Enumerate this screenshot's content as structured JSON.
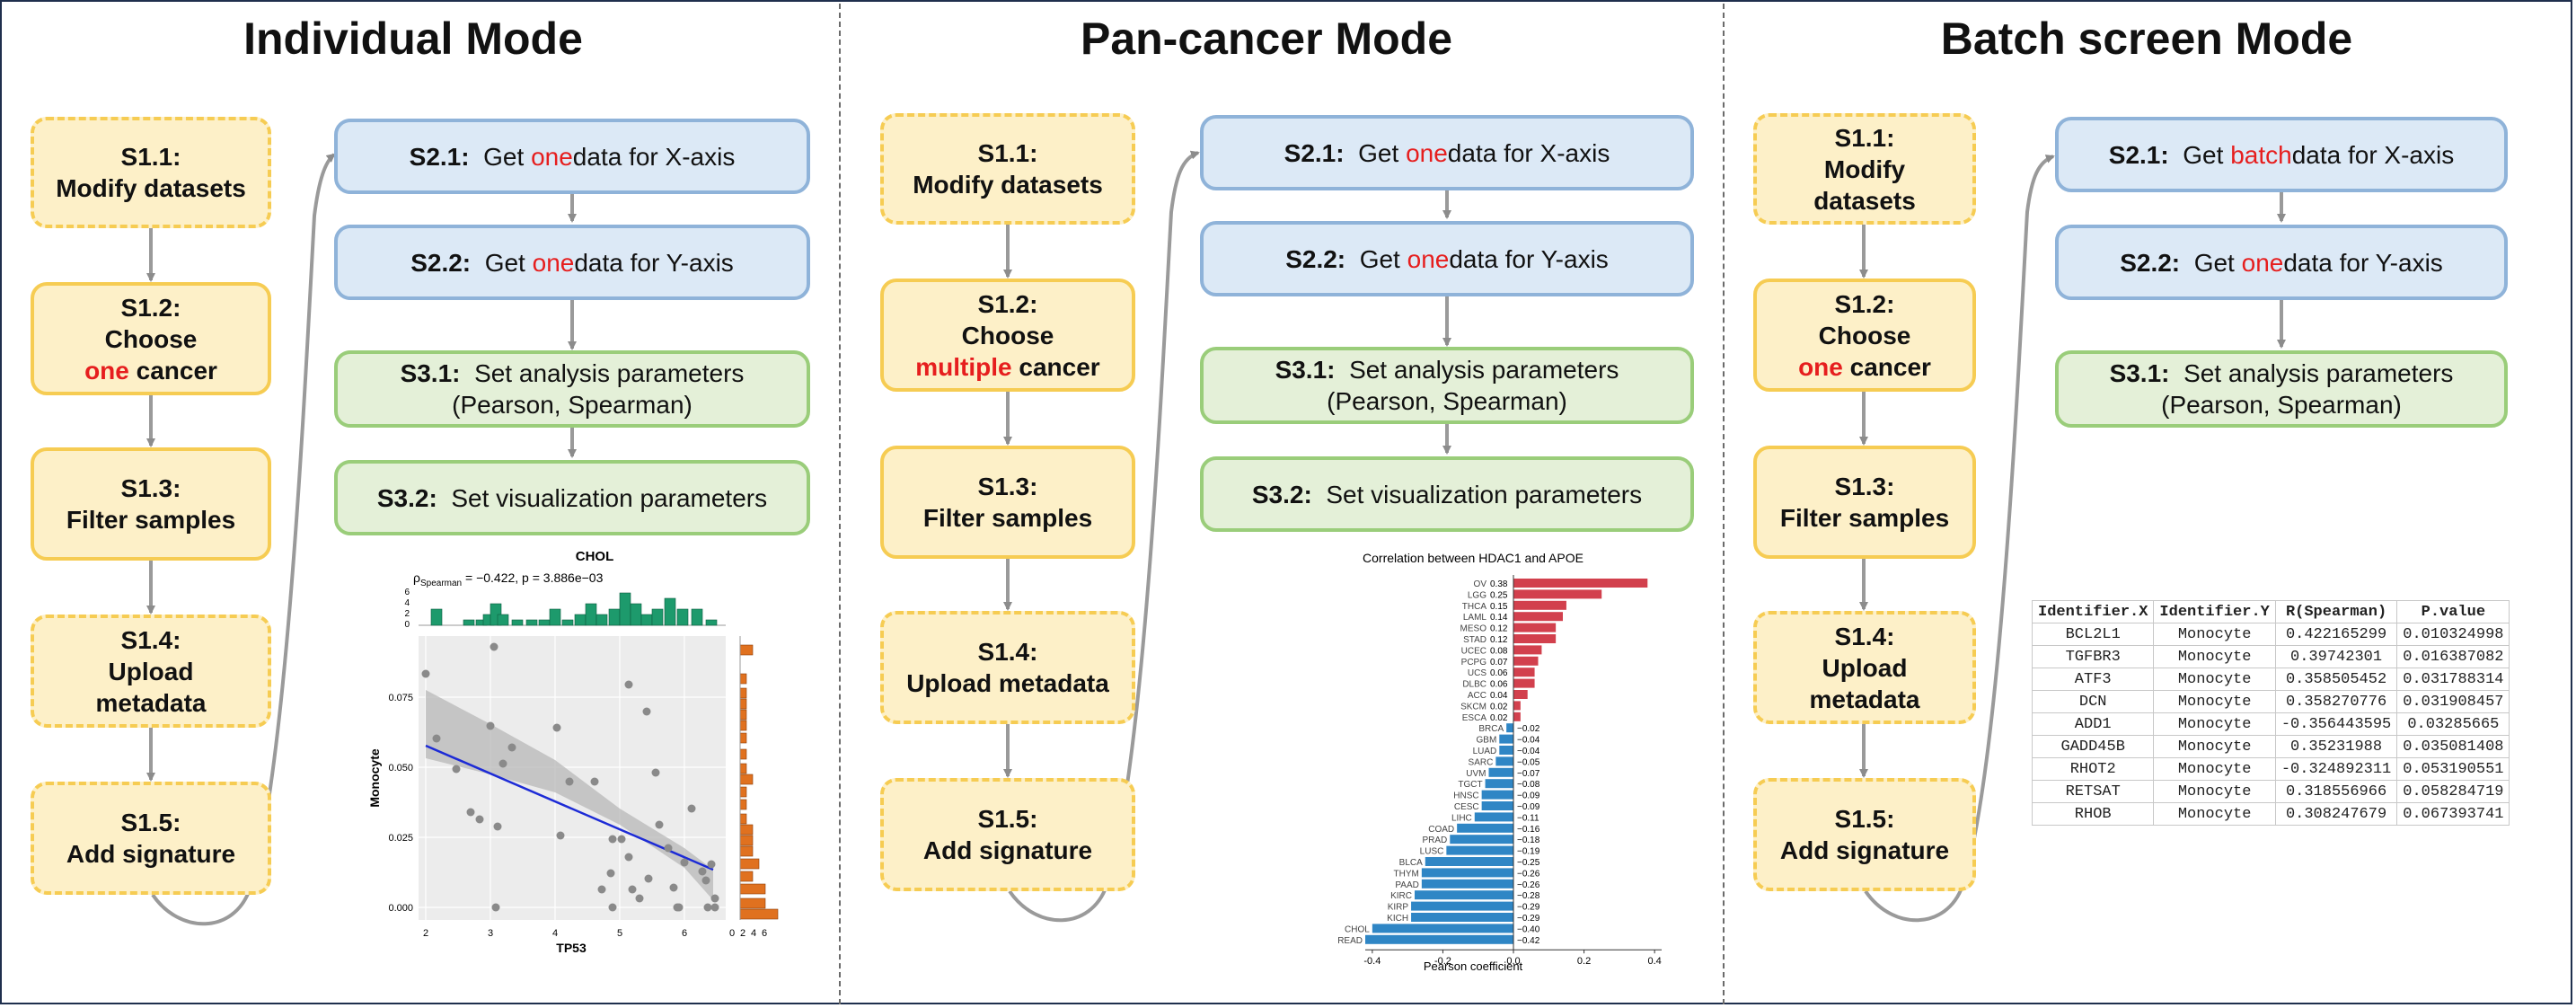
{
  "titles": {
    "individual": "Individual Mode",
    "pancancer": "Pan-cancer Mode",
    "batch": "Batch screen Mode"
  },
  "colors": {
    "yellow_fill": "#fdf0c8",
    "yellow_border": "#f6cc53",
    "blue_fill": "#dce9f6",
    "blue_border": "#8fb3d9",
    "green_fill": "#e4f0d8",
    "green_border": "#9acd7a",
    "highlight": "#e61e1e"
  },
  "steps": {
    "s11_id": "S1.1:",
    "s11_text": "Modify datasets",
    "s11_text_a": "Modify",
    "s11_text_b": "datasets",
    "s12_id": "S1.2:",
    "s12_line": "Choose",
    "cancer_one": "one",
    "cancer_multiple": "multiple",
    "cancer_word": " cancer",
    "s13_id": "S1.3:",
    "s13_text": "Filter samples",
    "s14_id": "S1.4:",
    "s14_text_a": "Upload",
    "s14_text_b": "metadata",
    "s14_text": "Upload metadata",
    "s15_id": "S1.5:",
    "s15_text": "Add signature",
    "s21_id": "S2.1:",
    "s21_pre": "Get ",
    "s21_one": "one",
    "s21_batch": "batch",
    "s21_post": " data for X-axis",
    "s22_id": "S2.2:",
    "s22_pre": "Get ",
    "s22_one": "one",
    "s22_post": " data for Y-axis",
    "s31_id": "S3.1:",
    "s31_text": "Set analysis parameters",
    "s31_sub": "(Pearson, Spearman)",
    "s32_id": "S3.2:",
    "s32_text": "Set visualization parameters"
  },
  "scatter": {
    "title": "CHOL",
    "stat": "ρSpearman = −0.422, p = 3.886e−03",
    "stat_rho": "ρ",
    "stat_sub": "Spearman",
    "stat_rest": " = −0.422, p = 3.886e−03",
    "xlabel": "TP53",
    "ylabel": "Monocyte",
    "xticks": [
      "2",
      "3",
      "4",
      "5",
      "6"
    ],
    "yticks": [
      "0.000",
      "0.025",
      "0.050",
      "0.075"
    ],
    "histy_ticks": [
      "6",
      "4",
      "2",
      "0"
    ],
    "histx_ticks": [
      "0",
      "2",
      "4",
      "6"
    ]
  },
  "chart_data": {
    "type": "bar",
    "title": "Correlation between HDAC1 and APOE",
    "xlabel": "Pearson coefficient",
    "ylabel": "",
    "xlim": [
      -0.42,
      0.42
    ],
    "xticks": [
      "-0.4",
      "-0.2",
      "0.0",
      "0.2",
      "0.4"
    ],
    "categories": [
      "OV",
      "LGG",
      "THCA",
      "LAML",
      "MESO",
      "STAD",
      "UCEC",
      "PCPG",
      "UCS",
      "DLBC",
      "ACC",
      "SKCM",
      "ESCA",
      "BRCA",
      "GBM",
      "LUAD",
      "SARC",
      "UVM",
      "TGCT",
      "HNSC",
      "CESC",
      "LIHC",
      "COAD",
      "PRAD",
      "LUSC",
      "BLCA",
      "THYM",
      "PAAD",
      "KIRC",
      "KIRP",
      "KICH",
      "CHOL",
      "READ"
    ],
    "values": [
      0.38,
      0.25,
      0.15,
      0.14,
      0.12,
      0.12,
      0.08,
      0.07,
      0.06,
      0.06,
      0.04,
      0.02,
      0.02,
      -0.02,
      -0.04,
      -0.04,
      -0.05,
      -0.07,
      -0.08,
      -0.09,
      -0.09,
      -0.11,
      -0.16,
      -0.18,
      -0.19,
      -0.25,
      -0.26,
      -0.26,
      -0.28,
      -0.29,
      -0.29,
      -0.4,
      -0.42
    ],
    "labels": [
      "0.38",
      "0.25",
      "0.15",
      "0.14",
      "0.12",
      "0.12",
      "0.08",
      "0.07",
      "0.06",
      "0.06",
      "0.04",
      "0.02",
      "0.02",
      "−0.02",
      "−0.04",
      "−0.04",
      "−0.05",
      "−0.07",
      "−0.08",
      "−0.09",
      "−0.09",
      "−0.11",
      "−0.16",
      "−0.18",
      "−0.19",
      "−0.25",
      "−0.26",
      "−0.26",
      "−0.28",
      "−0.29",
      "−0.29",
      "−0.40",
      "−0.42"
    ],
    "positive_color": "#d2404d",
    "negative_color": "#2f86c5"
  },
  "table": {
    "headers": [
      "Identifier.X",
      "Identifier.Y",
      "R(Spearman)",
      "P.value"
    ],
    "rows": [
      [
        "BCL2L1",
        "Monocyte",
        "0.422165299",
        "0.010324998"
      ],
      [
        "TGFBR3",
        "Monocyte",
        "0.39742301",
        "0.016387082"
      ],
      [
        "ATF3",
        "Monocyte",
        "0.358505452",
        "0.031788314"
      ],
      [
        "DCN",
        "Monocyte",
        "0.358270776",
        "0.031908457"
      ],
      [
        "ADD1",
        "Monocyte",
        "-0.356443595",
        "0.03285665"
      ],
      [
        "GADD45B",
        "Monocyte",
        "0.35231988",
        "0.035081408"
      ],
      [
        "RHOT2",
        "Monocyte",
        "-0.324892311",
        "0.053190551"
      ],
      [
        "RETSAT",
        "Monocyte",
        "0.318556966",
        "0.058284719"
      ],
      [
        "RHOB",
        "Monocyte",
        "0.308247679",
        "0.067393741"
      ]
    ]
  }
}
